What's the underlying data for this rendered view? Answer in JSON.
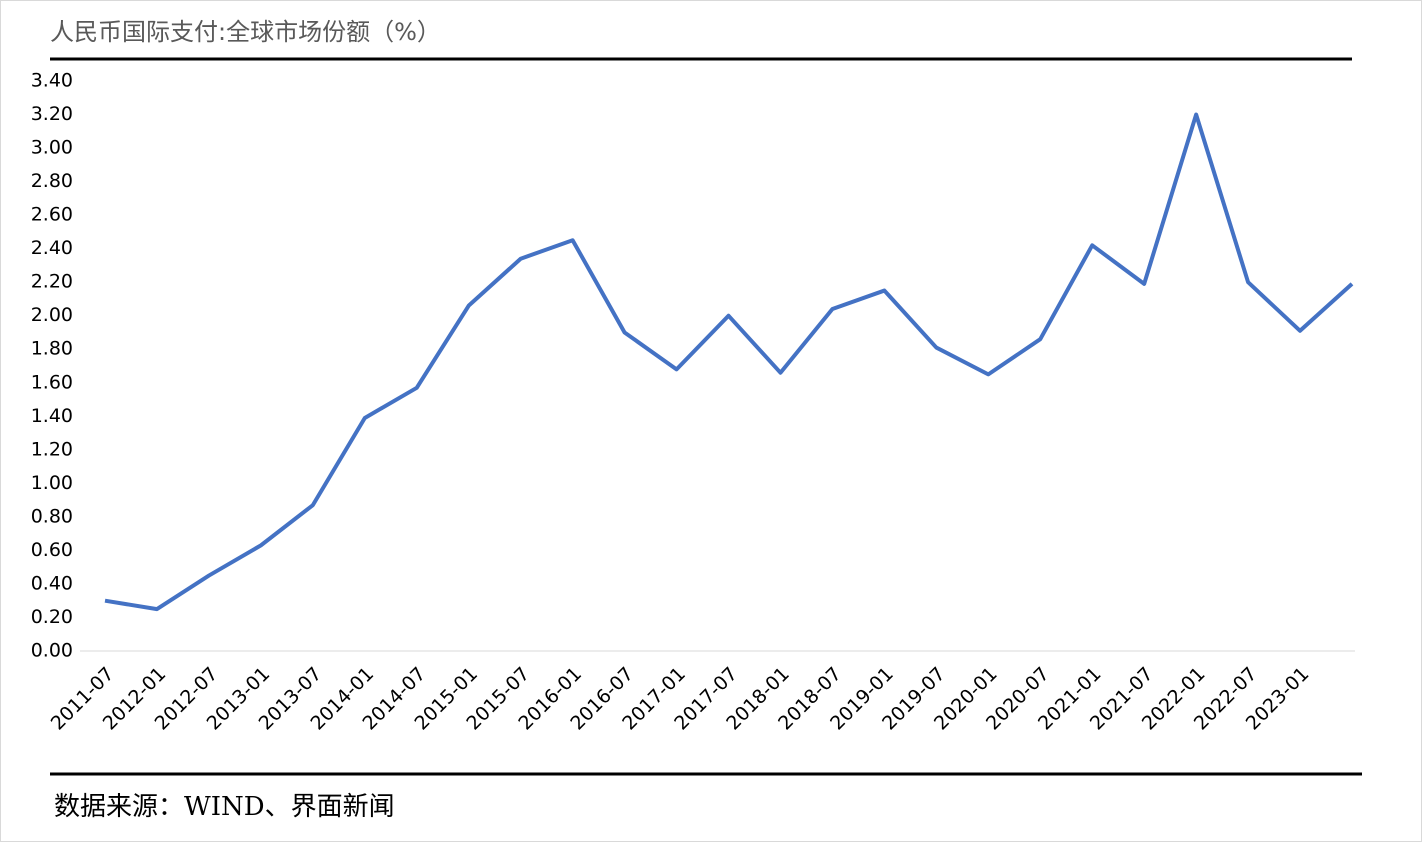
{
  "chart_data": {
    "type": "line",
    "title": "人民币国际支付:全球市场份额（%）",
    "source": "数据来源：WIND、界面新闻",
    "categories": [
      "2011-07",
      "2012-01",
      "2012-07",
      "2013-01",
      "2013-07",
      "2014-01",
      "2014-07",
      "2015-01",
      "2015-07",
      "2016-01",
      "2016-07",
      "2017-01",
      "2017-07",
      "2018-01",
      "2018-07",
      "2019-01",
      "2019-07",
      "2020-01",
      "2020-07",
      "2021-01",
      "2021-07",
      "2022-01",
      "2022-07",
      "2023-01",
      null
    ],
    "series": [
      {
        "color": "#4472c4",
        "values": [
          0.3,
          0.25,
          0.45,
          0.63,
          0.87,
          1.39,
          1.57,
          2.06,
          2.34,
          2.45,
          1.9,
          1.68,
          2.0,
          1.66,
          2.04,
          2.15,
          1.81,
          1.65,
          1.86,
          2.42,
          2.19,
          3.2,
          2.2,
          1.91,
          2.19
        ]
      }
    ],
    "ylim": [
      0,
      3.4
    ],
    "yticks": [
      {
        "value": 0,
        "label": "0.00"
      },
      {
        "value": 0.2,
        "label": "0.20"
      },
      {
        "value": 0.4,
        "label": "0.40"
      },
      {
        "value": 0.6,
        "label": "0.60"
      },
      {
        "value": 0.8,
        "label": "0.80"
      },
      {
        "value": 1,
        "label": "1.00"
      },
      {
        "value": 1.2,
        "label": "1.20"
      },
      {
        "value": 1.4,
        "label": "1.40"
      },
      {
        "value": 1.6,
        "label": "1.60"
      },
      {
        "value": 1.8,
        "label": "1.80"
      },
      {
        "value": 2,
        "label": "2.00"
      },
      {
        "value": 2.2,
        "label": "2.20"
      },
      {
        "value": 2.4,
        "label": "2.40"
      },
      {
        "value": 2.6,
        "label": "2.60"
      },
      {
        "value": 2.8,
        "label": "2.80"
      },
      {
        "value": 3,
        "label": "3.00"
      },
      {
        "value": 3.2,
        "label": "3.20"
      },
      {
        "value": 3.4,
        "label": "3.40"
      }
    ],
    "grid": false
  }
}
